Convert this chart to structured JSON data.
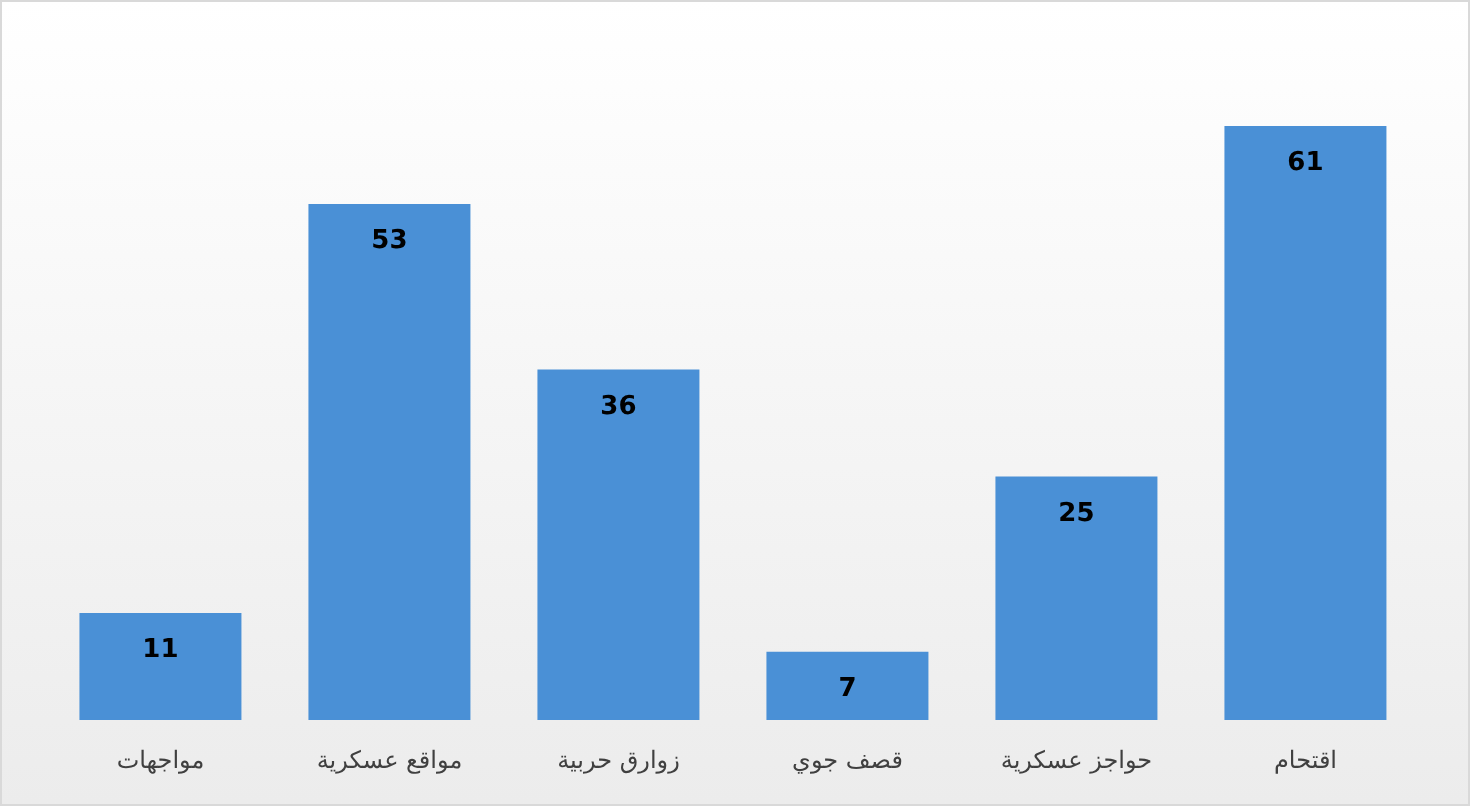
{
  "chart_data": {
    "type": "bar",
    "categories": [
      "مواجهات",
      "مواقع عسكرية",
      "زوارق حربية",
      "قصف جوي",
      "حواجز عسكرية",
      "اقتحام"
    ],
    "values": [
      11,
      53,
      36,
      7,
      25,
      61
    ],
    "color": "#4a90d6",
    "data_labels": true,
    "grid": false,
    "legend": false
  }
}
